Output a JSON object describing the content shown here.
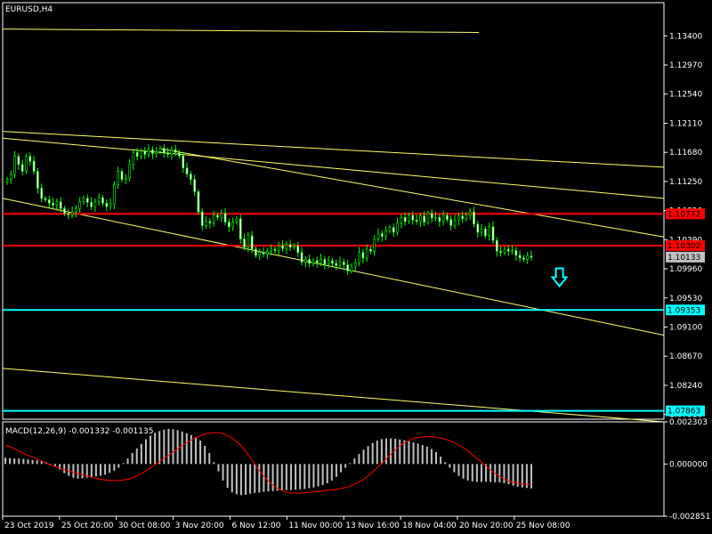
{
  "window": {
    "title": "EURUSD,H4"
  },
  "colors": {
    "background": "#000000",
    "frame": "#ffffff",
    "bull_candle": "#00ff00",
    "bear_candle": "#ffffff",
    "trendline": "#ffff66",
    "resistance": "#ff0000",
    "support": "#00ffff",
    "arrow": "#00ffff",
    "macd_hist": "#c0c0c0",
    "macd_signal": "#ff0000",
    "current_price_tag": "#c0c0c0"
  },
  "chart_data": [
    {
      "type": "candlestick",
      "symbol": "EURUSD",
      "timeframe": "H4",
      "title": "EURUSD,H4",
      "ylim": [
        1.0774,
        1.1389
      ],
      "y_ticks": [
        "1.13400",
        "1.12970",
        "1.12540",
        "1.12110",
        "1.11680",
        "1.11250",
        "1.10820",
        "1.10390",
        "1.09960",
        "1.09530",
        "1.09100",
        "1.08670",
        "1.08240",
        "1.07810"
      ],
      "x_ticks": [
        "23 Oct 2019",
        "25 Oct 20:00",
        "30 Oct 08:00",
        "3 Nov 20:00",
        "6 Nov 12:00",
        "11 Nov 00:00",
        "13 Nov 16:00",
        "18 Nov 04:00",
        "20 Nov 20:00",
        "25 Nov 08:00"
      ],
      "price_path": [
        [
          1.1128,
          1.1135,
          1.1162,
          1.115,
          1.114,
          1.1162,
          1.1155,
          1.114,
          1.1115,
          1.11,
          1.1098,
          1.1093,
          1.109,
          1.1095,
          1.1085,
          1.1078
        ],
        [
          1.1076,
          1.108,
          1.1085,
          1.1095,
          1.11,
          1.1094,
          1.1088,
          1.1095,
          1.1101,
          1.1093,
          1.1088,
          1.1092,
          1.112,
          1.114,
          1.1128,
          1.113
        ],
        [
          1.115,
          1.1168,
          1.1162,
          1.117,
          1.1165,
          1.1172,
          1.1166,
          1.1169,
          1.1174,
          1.1167,
          1.1165,
          1.1172,
          1.1168,
          1.1163,
          1.1145,
          1.1136
        ],
        [
          1.1128,
          1.111,
          1.108,
          1.106,
          1.1066,
          1.1064,
          1.1075,
          1.1072,
          1.1078,
          1.1065,
          1.1058,
          1.1065,
          1.107,
          1.104,
          1.1028,
          1.1045
        ],
        [
          1.1025,
          1.1016,
          1.102,
          1.1018,
          1.1022,
          1.1025,
          1.1023,
          1.103,
          1.1026,
          1.1032,
          1.1028,
          1.103,
          1.102,
          1.1006,
          1.101,
          1.1004
        ],
        [
          1.1008,
          1.1005,
          1.101,
          1.1003,
          1.1008,
          1.1004,
          1.1001,
          1.1006,
          1.1002,
          1.0993,
          1.1,
          1.1005,
          1.102,
          1.1012,
          1.1025,
          1.1022
        ],
        [
          1.104,
          1.1048,
          1.1044,
          1.1052,
          1.1057,
          1.105,
          1.1064,
          1.1072,
          1.1066,
          1.1075,
          1.1068,
          1.1066,
          1.1074,
          1.1065,
          1.1078,
          1.1071
        ],
        [
          1.1072,
          1.1066,
          1.1075,
          1.1069,
          1.106,
          1.1068,
          1.1074,
          1.107,
          1.1076,
          1.108,
          1.1062,
          1.105,
          1.1055,
          1.1045,
          1.1058,
          1.1038
        ],
        [
          1.1022,
          1.102,
          1.1025,
          1.1022,
          1.1023,
          1.1016,
          1.1012,
          1.101,
          1.1015,
          1.1013
        ]
      ],
      "horizontal_levels": [
        {
          "label": "1.10772",
          "value": 1.10772,
          "color": "#ff0000"
        },
        {
          "label": "1.10302",
          "value": 1.10302,
          "color": "#ff0000"
        },
        {
          "label": "1.09353",
          "value": 1.09353,
          "color": "#00ffff"
        },
        {
          "label": "1.07863",
          "value": 1.07863,
          "color": "#00ffff"
        }
      ],
      "current_price": {
        "label": "1.10133",
        "value": 1.10133
      },
      "trendlines": [
        {
          "p1": [
            0.0,
            1.135
          ],
          "p2": [
            0.72,
            1.1345
          ]
        },
        {
          "p1": [
            0.0,
            1.1199
          ],
          "p2": [
            1.0,
            1.1146
          ]
        },
        {
          "p1": [
            0.0,
            1.1189
          ],
          "p2": [
            1.0,
            1.11
          ]
        },
        {
          "p1": [
            0.24,
            1.1173
          ],
          "p2": [
            1.0,
            1.1043
          ]
        },
        {
          "p1": [
            0.0,
            1.11
          ],
          "p2": [
            1.0,
            1.0898
          ]
        },
        {
          "p1": [
            0.0,
            1.0849
          ],
          "p2": [
            1.0,
            1.077
          ]
        }
      ],
      "signal_arrow": {
        "direction": "down",
        "x_frac": 0.842,
        "price": 1.0981
      }
    },
    {
      "type": "histogram_line",
      "title": "MACD(12,26,9) -0.001332 -0.001135",
      "indicator": "MACD",
      "params": [
        12,
        26,
        9
      ],
      "macd_value": -0.001332,
      "signal_value": -0.001135,
      "ylim": [
        -0.002851,
        0.002303
      ],
      "y_ticks": [
        "0.002303",
        "0.000000",
        "-0.002851"
      ],
      "histogram": [
        0.00035,
        0.00032,
        0.0003,
        0.0003,
        0.00028,
        0.00025,
        0.00022,
        0.0002,
        0.00016,
        0.0001,
        2e-05,
        -0.0001,
        -0.0003,
        -0.0005,
        -0.00065,
        -0.00075,
        -0.0008,
        -0.00078,
        -0.00075,
        -0.00072,
        -0.00068,
        -0.00064,
        -0.00058,
        -0.00048,
        -0.00036,
        -0.0002,
        5e-05,
        0.0003,
        0.0006,
        0.00085,
        0.0011,
        0.00135,
        0.00155,
        0.0017,
        0.0018,
        0.00188,
        0.00192,
        0.0019,
        0.00185,
        0.00178,
        0.00168,
        0.00158,
        0.00145,
        0.00128,
        0.001,
        0.0006,
        0.0001,
        -0.0004,
        -0.0009,
        -0.0013,
        -0.00155,
        -0.00165,
        -0.0017,
        -0.00168,
        -0.00162,
        -0.00158,
        -0.00156,
        -0.00152,
        -0.0015,
        -0.00148,
        -0.00146,
        -0.00144,
        -0.00143,
        -0.00142,
        -0.0014,
        -0.00138,
        -0.00136,
        -0.00132,
        -0.00128,
        -0.00122,
        -0.00115,
        -0.00105,
        -0.0009,
        -0.0007,
        -0.00045,
        -0.0002,
        5e-05,
        0.0003,
        0.00055,
        0.00078,
        0.00098,
        0.00115,
        0.00128,
        0.00136,
        0.0014,
        0.0014,
        0.00138,
        0.00134,
        0.0013,
        0.00124,
        0.00118,
        0.00112,
        0.00104,
        0.00095,
        0.00082,
        0.00065,
        0.0004,
        0.0001,
        -0.0002,
        -0.00045,
        -0.00065,
        -0.0008,
        -0.0009,
        -0.00095,
        -0.00098,
        -0.00098,
        -0.00097,
        -0.00098,
        -0.001,
        -0.001,
        -0.00105,
        -0.0011,
        -0.00118,
        -0.00124,
        -0.00128,
        -0.00131,
        -0.00133
      ],
      "signal": [
        0.00105,
        0.0009,
        0.00072,
        0.00055,
        0.0004,
        0.00025,
        0.0001,
        -5e-05,
        -0.00018,
        -0.0003,
        -0.0004,
        -0.0005,
        -0.0006,
        -0.0007,
        -0.00078,
        -0.00085,
        -0.0009,
        -0.0009,
        -0.00088,
        -0.00082,
        -0.0007,
        -0.00052,
        -0.0003,
        -5e-05,
        0.0002,
        0.00045,
        0.0007,
        0.00095,
        0.00118,
        0.00138,
        0.00155,
        0.00166,
        0.00172,
        0.0017,
        0.0016,
        0.0014,
        0.0011,
        0.0007,
        0.0002,
        -0.0003,
        -0.00075,
        -0.0011,
        -0.00135,
        -0.0015,
        -0.00158,
        -0.0016,
        -0.00158,
        -0.00154,
        -0.0015,
        -0.00146,
        -0.00142,
        -0.00138,
        -0.00132,
        -0.00122,
        -0.00108,
        -0.00088,
        -0.00062,
        -0.0003,
        5e-05,
        0.0004,
        0.00075,
        0.00105,
        0.00128,
        0.00142,
        0.00148,
        0.0015,
        0.00148,
        0.00142,
        0.00133,
        0.0012,
        0.001,
        0.00078,
        0.0005,
        0.0002,
        -0.0001,
        -0.0004,
        -0.00065,
        -0.00085,
        -0.00098,
        -0.00106,
        -0.0011,
        -0.00113
      ]
    }
  ]
}
